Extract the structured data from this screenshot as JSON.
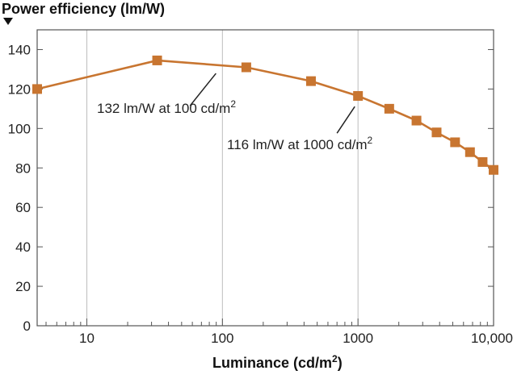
{
  "chart_data": {
    "type": "line",
    "ylabel": "Power efficiency (lm/W)",
    "xlabel_main": "Luminance (cd/m",
    "xlabel_sup": "2",
    "xlabel_end": ")",
    "x_scale": "log",
    "xlim": [
      4.3,
      10000
    ],
    "ylim": [
      0,
      150
    ],
    "grid": "vertical",
    "x_ticks": [
      10,
      100,
      1000,
      10000
    ],
    "x_tick_labels": [
      "10",
      "100",
      "1000",
      "10,000"
    ],
    "y_ticks": [
      0,
      20,
      40,
      60,
      80,
      100,
      120,
      140
    ],
    "y_tick_labels": [
      "0",
      "20",
      "40",
      "60",
      "80",
      "100",
      "120",
      "140"
    ],
    "series": [
      {
        "color": "#c87530",
        "points": [
          {
            "x": 4.3,
            "y": 120
          },
          {
            "x": 33,
            "y": 134.5
          },
          {
            "x": 150,
            "y": 131
          },
          {
            "x": 450,
            "y": 124
          },
          {
            "x": 1000,
            "y": 116.5
          },
          {
            "x": 1700,
            "y": 110
          },
          {
            "x": 2700,
            "y": 104
          },
          {
            "x": 3800,
            "y": 98
          },
          {
            "x": 5200,
            "y": 93
          },
          {
            "x": 6700,
            "y": 88
          },
          {
            "x": 8300,
            "y": 83
          },
          {
            "x": 10000,
            "y": 79
          }
        ]
      }
    ],
    "annotations": [
      {
        "text": "132 lm/W at 100 cd/m",
        "sup": "2",
        "x": 100,
        "y": 132
      },
      {
        "text": "116 lm/W at 1000 cd/m",
        "sup": "2",
        "x": 1000,
        "y": 116
      }
    ]
  }
}
